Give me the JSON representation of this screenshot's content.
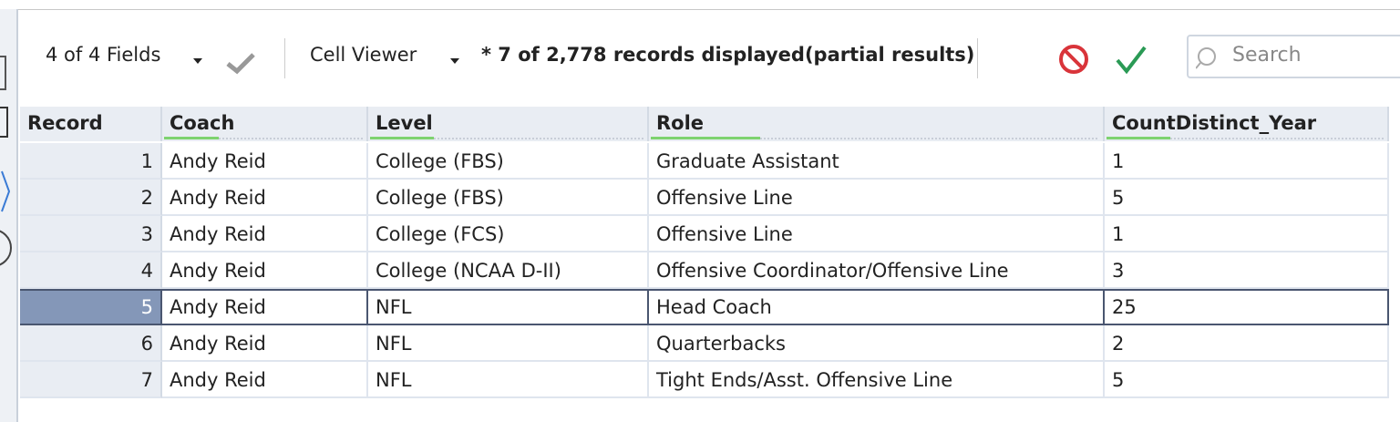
{
  "toolbar": {
    "fields": "4 of 4 Fields",
    "viewer": "Cell Viewer",
    "status": "* 7 of 2,778 records displayed(partial results)",
    "search_placeholder": "Search"
  },
  "table": {
    "columns": [
      "Record",
      "Coach",
      "Level",
      "Role",
      "CountDistinct_Year"
    ],
    "rows": [
      [
        "1",
        "Andy Reid",
        "College (FBS)",
        "Graduate Assistant",
        "1"
      ],
      [
        "2",
        "Andy Reid",
        "College (FBS)",
        "Offensive Line",
        "5"
      ],
      [
        "3",
        "Andy Reid",
        "College (FCS)",
        "Offensive Line",
        "1"
      ],
      [
        "4",
        "Andy Reid",
        "College (NCAA D-II)",
        "Offensive Coordinator/Offensive Line",
        "3"
      ],
      [
        "5",
        "Andy Reid",
        "NFL",
        "Head Coach",
        "25"
      ],
      [
        "6",
        "Andy Reid",
        "NFL",
        "Quarterbacks",
        "2"
      ],
      [
        "7",
        "Andy Reid",
        "NFL",
        "Tight Ends/Asst. Offensive Line",
        "5"
      ]
    ]
  }
}
